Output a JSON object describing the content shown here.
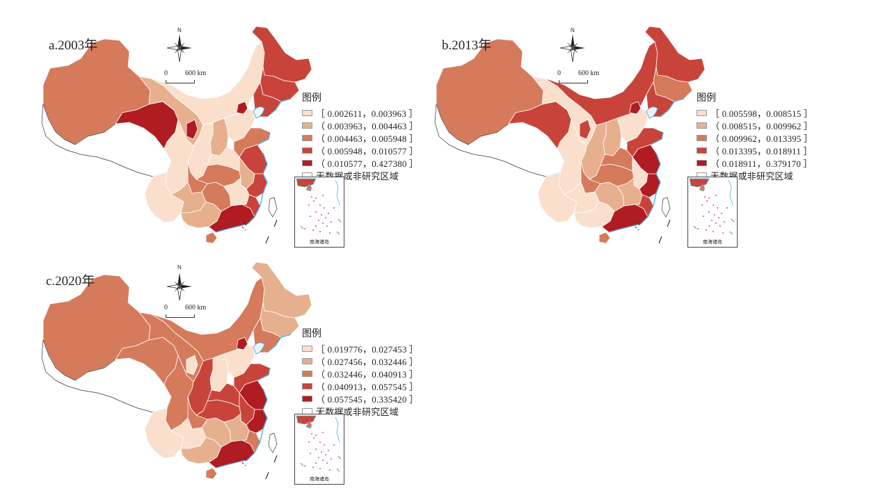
{
  "panels": [
    {
      "id": "a",
      "title": "a.2003年",
      "legend": {
        "title": "图例",
        "items": [
          {
            "label": "［ 0.002611，0.003963 ］",
            "color": "#f9dfcc"
          },
          {
            "label": "（ 0.003963，0.004463 ］",
            "color": "#e6b08e"
          },
          {
            "label": "（ 0.004463，0.005948 ］",
            "color": "#d67a5c"
          },
          {
            "label": "（ 0.005948，0.010577 ］",
            "color": "#c8443a"
          },
          {
            "label": "（ 0.010577，0.427380 ］",
            "color": "#b01c22"
          }
        ],
        "nodata": {
          "label": "无数据或非研究区域",
          "color": "#ffffff"
        }
      }
    },
    {
      "id": "b",
      "title": "b.2013年",
      "legend": {
        "title": "图例",
        "items": [
          {
            "label": "［ 0.005598，0.008515 ］",
            "color": "#f9dfcc"
          },
          {
            "label": "（ 0.008515，0.009962 ］",
            "color": "#e6b08e"
          },
          {
            "label": "（ 0.009962，0.013395 ］",
            "color": "#d67a5c"
          },
          {
            "label": "（ 0.013395，0.018911 ］",
            "color": "#c8443a"
          },
          {
            "label": "（ 0.018911，0.379170 ］",
            "color": "#b01c22"
          }
        ],
        "nodata": {
          "label": "无数据或非研究区域",
          "color": "#ffffff"
        }
      }
    },
    {
      "id": "c",
      "title": "c.2020年",
      "legend": {
        "title": "图例",
        "items": [
          {
            "label": "［ 0.019776，0.027453 ］",
            "color": "#f9dfcc"
          },
          {
            "label": "（ 0.027456，0.032446 ］",
            "color": "#e6b08e"
          },
          {
            "label": "（ 0.032446，0.040913 ］",
            "color": "#d67a5c"
          },
          {
            "label": "（ 0.040913，0.057545 ］",
            "color": "#c8443a"
          },
          {
            "label": "（ 0.057545，0.335420 ］",
            "color": "#b01c22"
          }
        ],
        "nodata": {
          "label": "无数据或非研究区域",
          "color": "#ffffff"
        }
      }
    }
  ],
  "map_common": {
    "north": "N",
    "scale_zero": "0",
    "scale_label": "600 km",
    "inset_label": "南海诸岛",
    "icon": "compass-rose-icon"
  },
  "colors": {
    "class1": "#f9dfcc",
    "class2": "#e6b08e",
    "class3": "#d67a5c",
    "class4": "#c8443a",
    "class5": "#b01c22",
    "border": "#ffffff",
    "coast": "#4fb3d9"
  },
  "region_classes": {
    "a": {
      "xinjiang": 3,
      "tibet": 0,
      "qinghai": 5,
      "gansu": 2,
      "inner_mongolia": 1,
      "heilongjiang": 4,
      "jilin": 4,
      "liaoning": 4,
      "beijing": 5,
      "hebei": 1,
      "shanxi": 2,
      "shaanxi": 1,
      "ningxia": 5,
      "sichuan": 1,
      "chongqing": 3,
      "yunnan": 1,
      "guizhou": 2,
      "guangxi": 2,
      "guangdong": 5,
      "hunan": 3,
      "hubei": 3,
      "henan": 1,
      "shandong": 3,
      "jiangsu": 4,
      "anhui": 2,
      "zhejiang": 4,
      "jiangxi": 1,
      "fujian": 4,
      "hainan": 3,
      "taiwan": 0
    },
    "b": {
      "xinjiang": 3,
      "tibet": 0,
      "qinghai": 4,
      "gansu": 1,
      "inner_mongolia": 4,
      "heilongjiang": 4,
      "jilin": 3,
      "liaoning": 4,
      "beijing": 5,
      "hebei": 1,
      "shanxi": 2,
      "shaanxi": 2,
      "ningxia": 4,
      "sichuan": 1,
      "chongqing": 3,
      "yunnan": 1,
      "guizhou": 1,
      "guangxi": 1,
      "guangdong": 5,
      "hunan": 2,
      "hubei": 3,
      "henan": 3,
      "shandong": 4,
      "jiangsu": 5,
      "anhui": 1,
      "zhejiang": 5,
      "jiangxi": 2,
      "fujian": 4,
      "hainan": 3,
      "taiwan": 0
    },
    "c": {
      "xinjiang": 3,
      "tibet": 0,
      "qinghai": 3,
      "gansu": 3,
      "inner_mongolia": 3,
      "heilongjiang": 2,
      "jilin": 2,
      "liaoning": 3,
      "beijing": 5,
      "hebei": 1,
      "shanxi": 1,
      "shaanxi": 4,
      "ningxia": 1,
      "sichuan": 3,
      "chongqing": 3,
      "yunnan": 1,
      "guizhou": 1,
      "guangxi": 2,
      "guangdong": 5,
      "hunan": 2,
      "hubei": 4,
      "henan": 4,
      "shandong": 4,
      "jiangsu": 5,
      "anhui": 4,
      "zhejiang": 5,
      "jiangxi": 2,
      "fujian": 3,
      "hainan": 3,
      "taiwan": 0
    }
  }
}
